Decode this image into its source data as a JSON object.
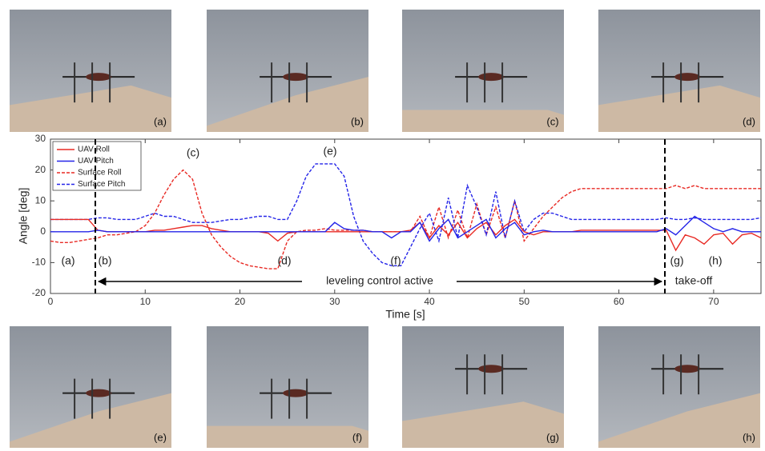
{
  "chart_data": {
    "type": "line",
    "ylabel": "Angle [deg]",
    "xlabel": "Time [s]",
    "xlim": [
      0,
      75
    ],
    "xticks": [
      0,
      10,
      20,
      30,
      40,
      50,
      60,
      70
    ],
    "ylim": [
      -20,
      30
    ],
    "yticks": [
      -20,
      -10,
      0,
      10,
      20,
      30
    ],
    "legend": "upper left",
    "x": [
      0,
      1,
      2,
      3,
      4,
      5,
      6,
      7,
      8,
      9,
      10,
      11,
      12,
      13,
      14,
      15,
      16,
      17,
      18,
      19,
      20,
      21,
      22,
      23,
      24,
      25,
      26,
      27,
      28,
      29,
      30,
      31,
      32,
      33,
      34,
      35,
      36,
      37,
      38,
      39,
      40,
      41,
      42,
      43,
      44,
      45,
      46,
      47,
      48,
      49,
      50,
      51,
      52,
      53,
      54,
      55,
      56,
      57,
      58,
      59,
      60,
      61,
      62,
      63,
      64,
      65,
      66,
      67,
      68,
      69,
      70,
      71,
      72,
      73,
      74,
      75
    ],
    "series": [
      {
        "name": "UAV Roll",
        "color": "#e82a24",
        "style": "solid",
        "values": [
          4,
          4,
          4,
          4,
          4,
          0.5,
          0,
          0,
          0,
          0,
          0,
          0.5,
          0.5,
          1,
          1.5,
          2,
          2,
          1,
          0.5,
          0,
          0,
          0,
          0,
          -0.5,
          -3,
          -0.5,
          0,
          0,
          0,
          0,
          0,
          0,
          0,
          0,
          0,
          0,
          0,
          0,
          0.5,
          3,
          -2,
          2,
          -1,
          3,
          -2,
          1,
          3,
          -1,
          2,
          4,
          0,
          -1,
          0,
          0,
          0,
          0,
          0.5,
          0.5,
          0.5,
          0.5,
          0.5,
          0.5,
          0.5,
          0.5,
          0.5,
          0.5,
          -6,
          -1,
          -2,
          -4,
          -1,
          -0.5,
          -4,
          -1,
          -0.5,
          -2
        ]
      },
      {
        "name": "UAV Pitch",
        "color": "#2424e8",
        "style": "solid",
        "values": [
          0,
          0,
          0,
          0,
          0,
          0.5,
          0,
          0,
          0,
          0,
          0,
          0,
          0,
          0,
          0,
          0,
          0,
          0,
          0,
          0,
          0,
          0,
          0,
          0,
          0,
          0,
          0,
          0,
          0,
          0,
          3,
          1,
          0.5,
          0.5,
          0,
          0,
          -2,
          0,
          0,
          3,
          -3,
          1,
          4,
          -2,
          0,
          2,
          4,
          -2,
          1,
          3,
          -1,
          0,
          0.5,
          0,
          0,
          0,
          0,
          0,
          0,
          0,
          0,
          0,
          0,
          0,
          0,
          1,
          -1,
          2,
          5,
          3,
          1,
          0,
          1,
          0,
          0,
          0
        ]
      },
      {
        "name": "Surface Roll",
        "color": "#e82a24",
        "style": "dashed",
        "values": [
          -3,
          -3.5,
          -3.5,
          -3,
          -2.5,
          -2,
          -1,
          -1,
          -0.5,
          0,
          2,
          6,
          12,
          17,
          20,
          17,
          6,
          -1,
          -5,
          -8,
          -10,
          -11,
          -11.5,
          -12,
          -12,
          -3,
          0,
          0.5,
          0.5,
          1,
          0.5,
          0.5,
          0.5,
          0.5,
          0,
          0,
          0,
          0,
          0,
          5,
          -2,
          8,
          -2,
          7,
          -2,
          9,
          -1,
          8,
          -2,
          10,
          -3,
          1,
          5,
          8,
          11,
          13,
          14,
          14,
          14,
          14,
          14,
          14,
          14,
          14,
          14,
          14,
          15,
          14,
          15,
          14,
          14,
          14,
          14,
          14,
          14,
          14
        ]
      },
      {
        "name": "Surface Pitch",
        "color": "#2424e8",
        "style": "dashed",
        "values": [
          4,
          4,
          4,
          4,
          4,
          4.5,
          4.5,
          4,
          4,
          4,
          5,
          6,
          5,
          5,
          4,
          3,
          3,
          3,
          3.5,
          4,
          4,
          4.5,
          5,
          5,
          4,
          4,
          10,
          18,
          22,
          22,
          22,
          18,
          5,
          -3,
          -7,
          -10,
          -11,
          -11,
          -5,
          1,
          6,
          -3,
          11,
          -2,
          15,
          8,
          -1,
          13,
          -2,
          10,
          0,
          4,
          6,
          6,
          5,
          4,
          4,
          4,
          4,
          4,
          4,
          4,
          4,
          4,
          4,
          4.5,
          4,
          4,
          4.5,
          4,
          4,
          4,
          4,
          4,
          4,
          4.5
        ]
      }
    ],
    "annotations": [
      "(a)",
      "(b)",
      "(c)",
      "(d)",
      "(e)",
      "(f)",
      "(g)",
      "(h)",
      "leveling control active",
      "take-off"
    ],
    "photos": {
      "top": [
        "(a)",
        "(b)",
        "(c)",
        "(d)"
      ],
      "bottom": [
        "(e)",
        "(f)",
        "(g)",
        "(h)"
      ]
    }
  }
}
